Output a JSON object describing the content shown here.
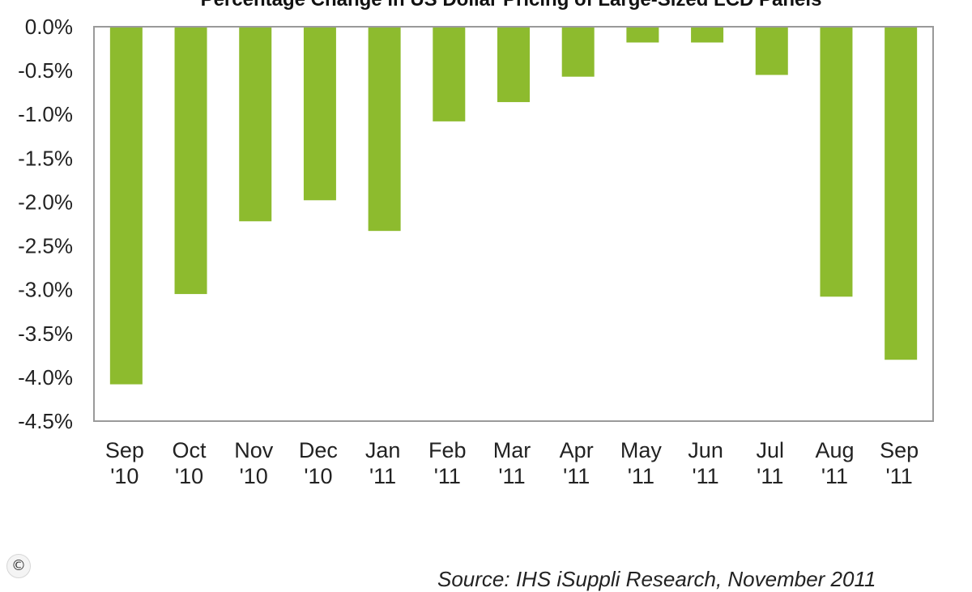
{
  "chart_data": {
    "type": "bar",
    "title": "Percentage Change in US Dollar Pricing of Large-Sized LCD Panels",
    "categories": [
      [
        "Sep",
        "'10"
      ],
      [
        "Oct",
        "'10"
      ],
      [
        "Nov",
        "'10"
      ],
      [
        "Dec",
        "'10"
      ],
      [
        "Jan",
        "'11"
      ],
      [
        "Feb",
        "'11"
      ],
      [
        "Mar",
        "'11"
      ],
      [
        "Apr",
        "'11"
      ],
      [
        "May",
        "'11"
      ],
      [
        "Jun",
        "'11"
      ],
      [
        "Jul",
        "'11"
      ],
      [
        "Aug",
        "'11"
      ],
      [
        "Sep",
        "'11"
      ]
    ],
    "values": [
      -4.08,
      -3.05,
      -2.22,
      -1.98,
      -2.33,
      -1.08,
      -0.86,
      -0.57,
      -0.18,
      -0.18,
      -0.55,
      -3.08,
      -3.8
    ],
    "ylim": [
      -4.5,
      0
    ],
    "yticks": [
      0,
      -0.5,
      -1.0,
      -1.5,
      -2.0,
      -2.5,
      -3.0,
      -3.5,
      -4.0,
      -4.5
    ],
    "ytick_labels": [
      "0.0%",
      "-0.5%",
      "-1.0%",
      "-1.5%",
      "-2.0%",
      "-2.5%",
      "-3.0%",
      "-3.5%",
      "-4.0%",
      "-4.5%"
    ],
    "xlabel": "",
    "ylabel": "",
    "grid": false,
    "bar_color": "#8dbb2e",
    "source": "Source: IHS iSuppli Research, November 2011"
  },
  "copyright_symbol": "©"
}
